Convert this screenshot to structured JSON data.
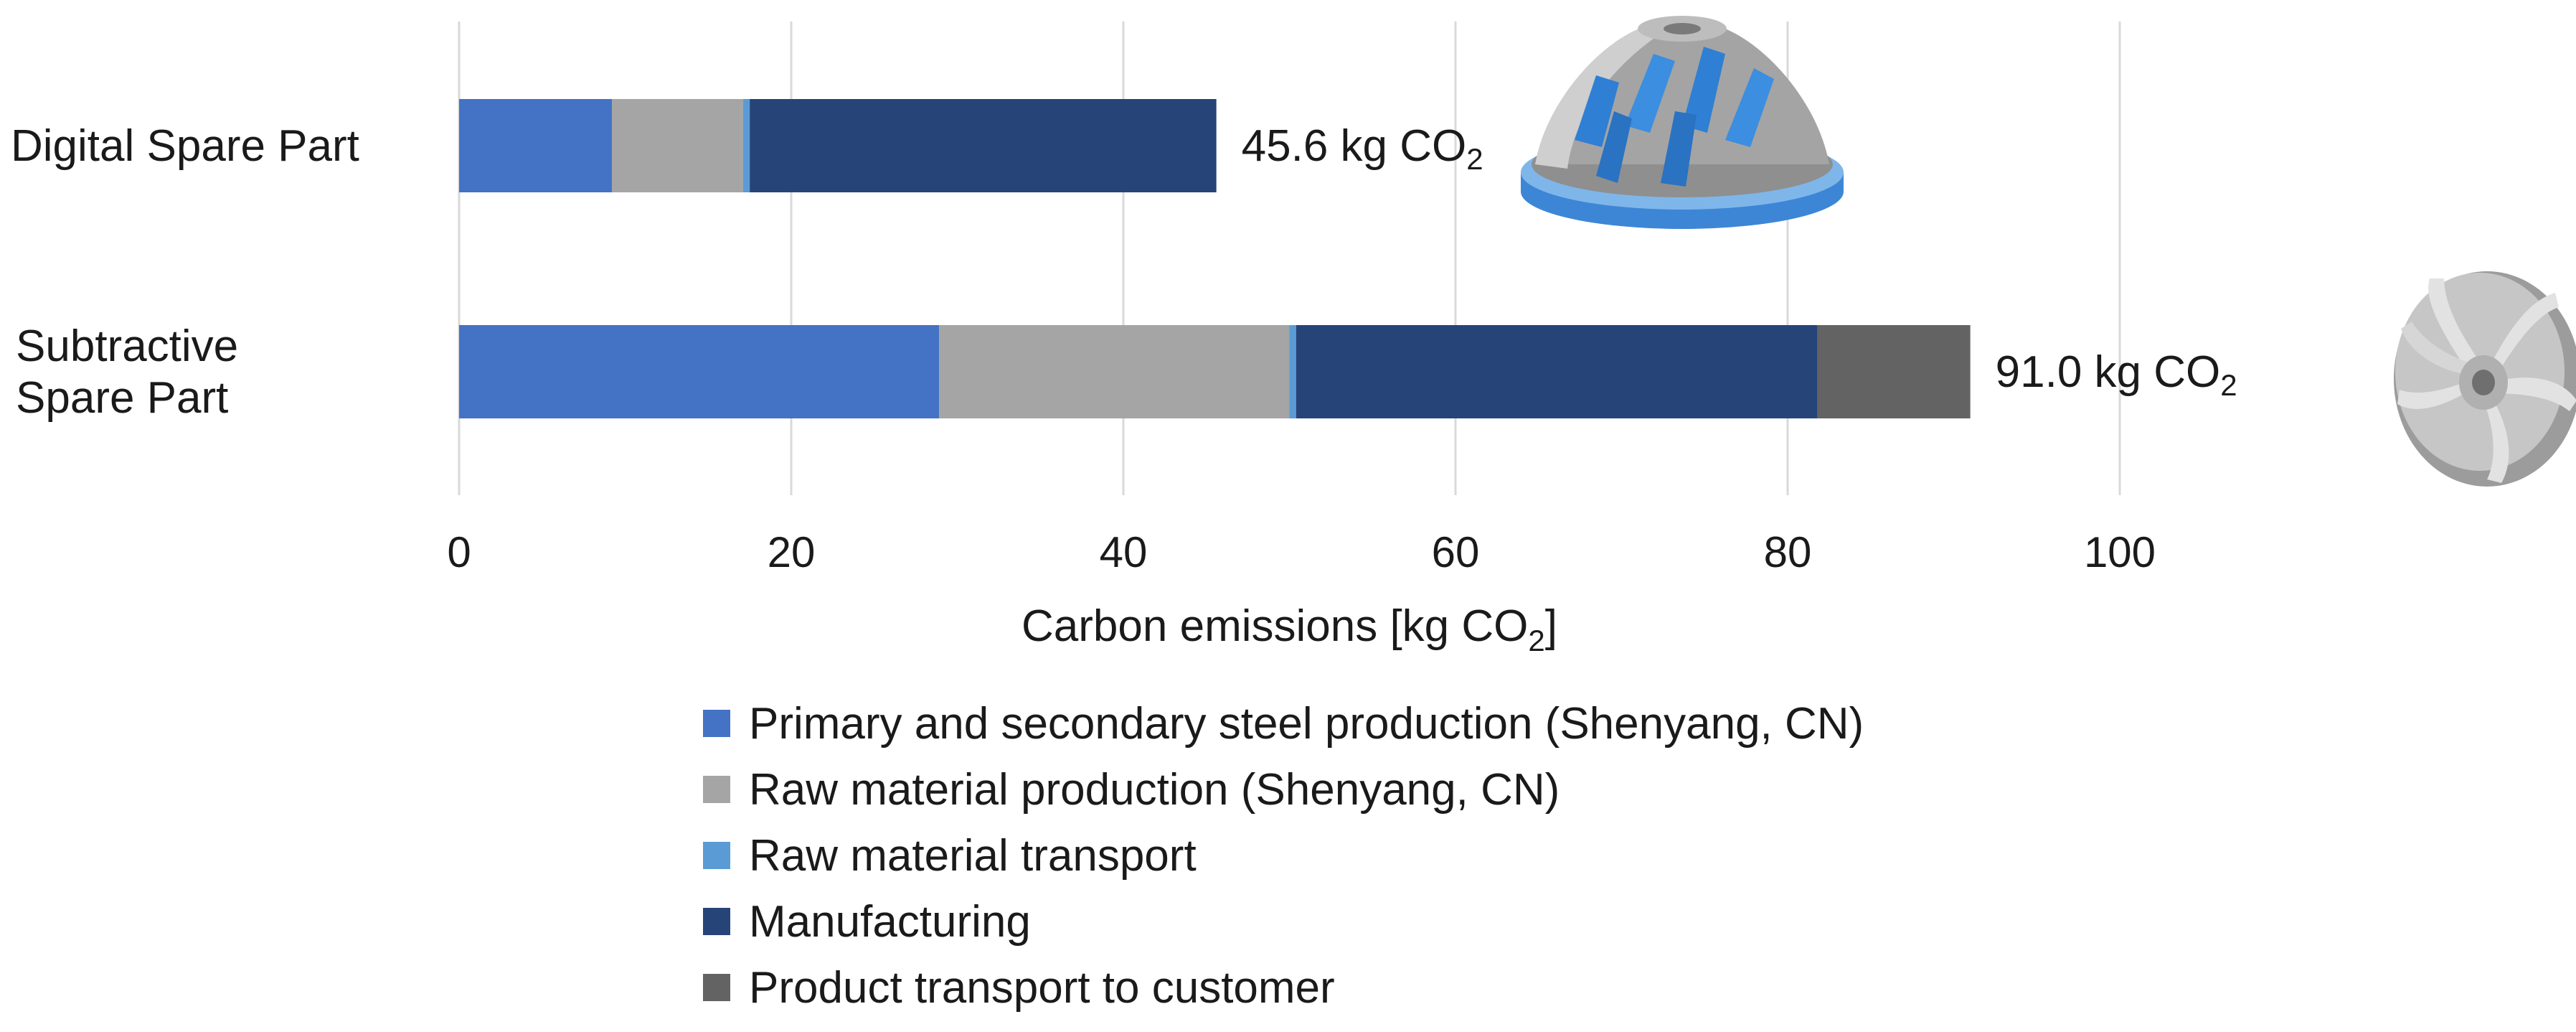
{
  "chart_data": {
    "type": "bar",
    "orientation": "horizontal",
    "stacked": true,
    "title": "",
    "xlabel": "Carbon emissions [kg CO",
    "xlabel_sub": "2",
    "xlabel_suffix": "]",
    "ylabel": "",
    "xlim": [
      0,
      100
    ],
    "xticks": [
      0,
      20,
      40,
      60,
      80,
      100
    ],
    "grid": "vertical",
    "legend_position": "bottom",
    "categories": [
      {
        "label_lines": [
          "Digital Spare Part"
        ]
      },
      {
        "label_lines": [
          "Subtractive",
          "Spare Part"
        ]
      }
    ],
    "totals": [
      {
        "value": 45.6,
        "text": "45.6 kg CO",
        "sub": "2"
      },
      {
        "value": 91.0,
        "text": "91.0 kg CO",
        "sub": "2"
      }
    ],
    "series": [
      {
        "name": "Primary and secondary steel production (Shenyang, CN)",
        "color": "#4472c4",
        "values": [
          9.2,
          28.9
        ]
      },
      {
        "name": "Raw material production (Shenyang, CN)",
        "color": "#a5a5a5",
        "values": [
          7.9,
          21.1
        ]
      },
      {
        "name": "Raw material transport",
        "color": "#5b9bd5",
        "values": [
          0.4,
          0.4
        ]
      },
      {
        "name": "Manufacturing",
        "color": "#264478",
        "values": [
          28.1,
          31.4
        ]
      },
      {
        "name": "Product transport to customer",
        "color": "#636363",
        "values": [
          0.0,
          9.2
        ]
      }
    ]
  },
  "icons": {
    "digital_part": "impeller-with-blue-blades-icon",
    "subtractive_part": "grey-impeller-icon"
  }
}
